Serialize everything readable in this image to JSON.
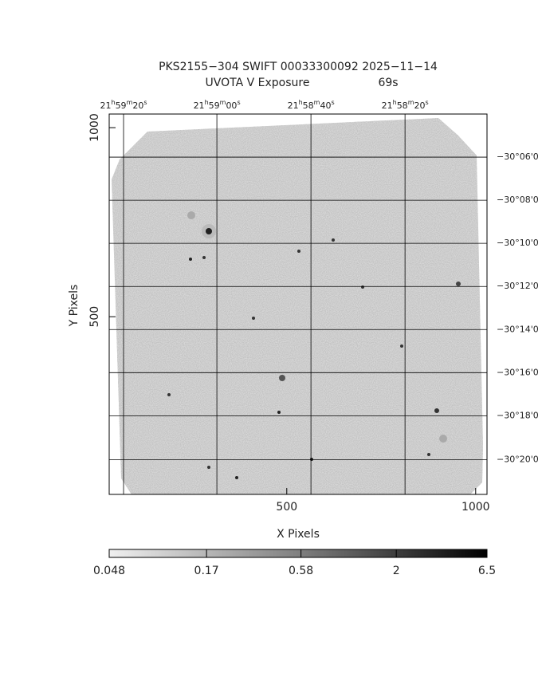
{
  "chart_data": {
    "type": "image",
    "title": "PKS2155−304 SWIFT 00033300092 2025−11−14",
    "subtitle": "UVOTA V Exposure",
    "exposure": "69s",
    "xlabel": "X Pixels",
    "ylabel": "Y Pixels",
    "xlim": [
      30,
      1030
    ],
    "ylim": [
      30,
      1036
    ],
    "xticks": [
      500,
      1000
    ],
    "yticks": [
      500,
      1000
    ],
    "ra_ticks": [
      {
        "value": 68,
        "label": [
          "21",
          "h",
          "59",
          "m",
          "20",
          "s"
        ]
      },
      {
        "value": 315,
        "label": [
          "21",
          "h",
          "59",
          "m",
          "00",
          "s"
        ]
      },
      {
        "value": 564,
        "label": [
          "21",
          "h",
          "58",
          "m",
          "40",
          "s"
        ]
      },
      {
        "value": 813,
        "label": [
          "21",
          "h",
          "58",
          "m",
          "20",
          "s"
        ]
      }
    ],
    "dec_ticks": [
      {
        "value": 922,
        "label": "−30°06'0"
      },
      {
        "value": 808,
        "label": "−30°08'0"
      },
      {
        "value": 694,
        "label": "−30°10'0"
      },
      {
        "value": 580,
        "label": "−30°12'0"
      },
      {
        "value": 466,
        "label": "−30°14'0"
      },
      {
        "value": 352,
        "label": "−30°16'0"
      },
      {
        "value": 238,
        "label": "−30°18'0"
      },
      {
        "value": 122,
        "label": "−30°20'0"
      }
    ],
    "grid": true,
    "colorbar": {
      "log": true,
      "clim": [
        0.048,
        6.5
      ],
      "ticks": [
        0.048,
        0.17,
        0.58,
        2,
        6.5
      ]
    }
  }
}
